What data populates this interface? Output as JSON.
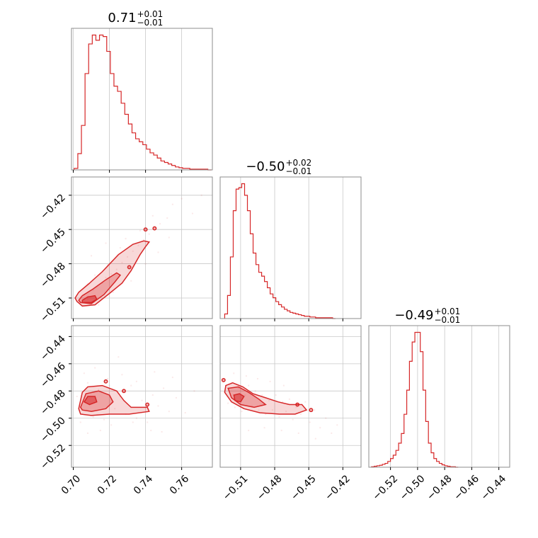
{
  "chart_data": {
    "type": "corner",
    "color": "#d62728",
    "parameters": [
      {
        "range": [
          0.699,
          0.777
        ],
        "ticks": [
          0.7,
          0.72,
          0.74,
          0.76
        ],
        "tick_labels": [
          "0.70",
          "0.72",
          "0.74",
          "0.76"
        ],
        "title": {
          "median": "0.71",
          "plus": "+0.01",
          "minus": "−0.01"
        },
        "histogram": {
          "start": 0.7005,
          "step": 0.002,
          "counts": [
            2,
            22,
            60,
            130,
            170,
            182,
            175,
            182,
            180,
            160,
            130,
            113,
            106,
            90,
            75,
            62,
            50,
            42,
            38,
            34,
            28,
            23,
            20,
            16,
            12,
            10,
            8,
            6,
            4,
            3,
            2,
            2,
            1,
            1,
            1,
            1,
            1,
            0
          ]
        }
      },
      {
        "range": [
          -0.528,
          -0.404
        ],
        "ticks": [
          -0.51,
          -0.48,
          -0.45,
          -0.42
        ],
        "tick_labels": [
          "−0.51",
          "−0.48",
          "−0.45",
          "−0.42"
        ],
        "title": {
          "median": "−0.50",
          "plus": "+0.02",
          "minus": "−0.01"
        },
        "histogram": {
          "start": -0.524,
          "step": 0.0025,
          "counts": [
            6,
            30,
            80,
            140,
            168,
            170,
            175,
            160,
            140,
            110,
            85,
            70,
            60,
            55,
            48,
            40,
            32,
            27,
            22,
            18,
            15,
            12,
            10,
            8,
            7,
            6,
            5,
            4,
            3,
            3,
            2,
            2,
            1,
            1,
            1,
            1,
            1,
            1,
            0
          ]
        }
      },
      {
        "range": [
          -0.536,
          -0.432
        ],
        "ticks": [
          -0.52,
          -0.5,
          -0.48,
          -0.46,
          -0.44
        ],
        "tick_labels": [
          "−0.52",
          "−0.50",
          "−0.48",
          "−0.46",
          "−0.44"
        ],
        "title": {
          "median": "−0.49",
          "plus": "+0.01",
          "minus": "−0.01"
        },
        "histogram": {
          "start": -0.534,
          "step": 0.002,
          "counts": [
            1,
            2,
            3,
            4,
            6,
            8,
            12,
            18,
            25,
            35,
            50,
            70,
            110,
            160,
            220,
            260,
            280,
            280,
            240,
            160,
            95,
            50,
            30,
            18,
            12,
            8,
            5,
            3,
            2,
            1,
            1,
            0
          ]
        }
      }
    ],
    "contours": [
      {
        "x_param": 0,
        "y_param": 1,
        "levels": [
          [
            [
              0.702,
              -0.513
            ],
            [
              0.705,
              -0.517
            ],
            [
              0.712,
              -0.516
            ],
            [
              0.72,
              -0.506
            ],
            [
              0.727,
              -0.497
            ],
            [
              0.732,
              -0.486
            ],
            [
              0.737,
              -0.472
            ],
            [
              0.74,
              -0.465
            ],
            [
              0.742,
              -0.461
            ],
            [
              0.739,
              -0.46
            ],
            [
              0.733,
              -0.463
            ],
            [
              0.725,
              -0.472
            ],
            [
              0.716,
              -0.487
            ],
            [
              0.709,
              -0.497
            ],
            [
              0.703,
              -0.505
            ],
            [
              0.701,
              -0.51
            ]
          ],
          [
            [
              0.704,
              -0.514
            ],
            [
              0.71,
              -0.515
            ],
            [
              0.717,
              -0.507
            ],
            [
              0.723,
              -0.496
            ],
            [
              0.726,
              -0.49
            ],
            [
              0.724,
              -0.488
            ],
            [
              0.718,
              -0.494
            ],
            [
              0.711,
              -0.502
            ],
            [
              0.705,
              -0.508
            ],
            [
              0.703,
              -0.512
            ]
          ],
          [
            [
              0.705,
              -0.514
            ],
            [
              0.71,
              -0.514
            ],
            [
              0.713,
              -0.511
            ],
            [
              0.712,
              -0.508
            ],
            [
              0.708,
              -0.509
            ],
            [
              0.705,
              -0.512
            ]
          ]
        ],
        "islands": [
          [
            0.74,
            -0.45
          ],
          [
            0.745,
            -0.449
          ],
          [
            0.731,
            -0.483
          ]
        ],
        "points": [
          [
            0.702,
            -0.513
          ],
          [
            0.704,
            -0.509
          ],
          [
            0.706,
            -0.507
          ],
          [
            0.708,
            -0.511
          ],
          [
            0.711,
            -0.503
          ],
          [
            0.713,
            -0.5
          ],
          [
            0.716,
            -0.497
          ],
          [
            0.718,
            -0.492
          ],
          [
            0.721,
            -0.489
          ],
          [
            0.724,
            -0.485
          ],
          [
            0.727,
            -0.479
          ],
          [
            0.73,
            -0.474
          ],
          [
            0.733,
            -0.469
          ],
          [
            0.736,
            -0.464
          ],
          [
            0.739,
            -0.459
          ],
          [
            0.742,
            -0.454
          ],
          [
            0.745,
            -0.448
          ],
          [
            0.748,
            -0.445
          ],
          [
            0.752,
            -0.44
          ],
          [
            0.708,
            -0.498
          ],
          [
            0.712,
            -0.49
          ],
          [
            0.719,
            -0.481
          ],
          [
            0.726,
            -0.466
          ],
          [
            0.737,
            -0.451
          ],
          [
            0.744,
            -0.438
          ],
          [
            0.755,
            -0.428
          ],
          [
            0.76,
            -0.423
          ],
          [
            0.766,
            -0.436
          ],
          [
            0.771,
            -0.42
          ],
          [
            0.714,
            -0.516
          ],
          [
            0.722,
            -0.505
          ],
          [
            0.732,
            -0.495
          ],
          [
            0.74,
            -0.48
          ],
          [
            0.747,
            -0.47
          ],
          [
            0.753,
            -0.457
          ],
          [
            0.71,
            -0.473
          ],
          [
            0.718,
            -0.462
          ],
          [
            0.729,
            -0.458
          ]
        ]
      },
      {
        "x_param": 0,
        "y_param": 2,
        "levels": [
          [
            [
              0.703,
              -0.493
            ],
            [
              0.705,
              -0.481
            ],
            [
              0.708,
              -0.477
            ],
            [
              0.716,
              -0.476
            ],
            [
              0.724,
              -0.48
            ],
            [
              0.728,
              -0.487
            ],
            [
              0.732,
              -0.492
            ],
            [
              0.741,
              -0.492
            ],
            [
              0.742,
              -0.495
            ],
            [
              0.731,
              -0.497
            ],
            [
              0.72,
              -0.497
            ],
            [
              0.71,
              -0.498
            ],
            [
              0.704,
              -0.497
            ]
          ],
          [
            [
              0.704,
              -0.492
            ],
            [
              0.707,
              -0.482
            ],
            [
              0.714,
              -0.48
            ],
            [
              0.72,
              -0.483
            ],
            [
              0.722,
              -0.488
            ],
            [
              0.718,
              -0.493
            ],
            [
              0.71,
              -0.495
            ],
            [
              0.705,
              -0.494
            ]
          ],
          [
            [
              0.706,
              -0.488
            ],
            [
              0.708,
              -0.484
            ],
            [
              0.712,
              -0.484
            ],
            [
              0.713,
              -0.488
            ],
            [
              0.709,
              -0.49
            ]
          ]
        ],
        "islands": [
          [
            0.718,
            -0.473
          ],
          [
            0.728,
            -0.48
          ],
          [
            0.741,
            -0.49
          ]
        ],
        "points": [
          [
            0.702,
            -0.484
          ],
          [
            0.705,
            -0.497
          ],
          [
            0.708,
            -0.474
          ],
          [
            0.711,
            -0.499
          ],
          [
            0.714,
            -0.479
          ],
          [
            0.717,
            -0.501
          ],
          [
            0.72,
            -0.476
          ],
          [
            0.723,
            -0.493
          ],
          [
            0.726,
            -0.484
          ],
          [
            0.729,
            -0.497
          ],
          [
            0.732,
            -0.476
          ],
          [
            0.735,
            -0.5
          ],
          [
            0.738,
            -0.487
          ],
          [
            0.741,
            -0.503
          ],
          [
            0.744,
            -0.483
          ],
          [
            0.747,
            -0.491
          ],
          [
            0.75,
            -0.478
          ],
          [
            0.753,
            -0.495
          ],
          [
            0.757,
            -0.485
          ],
          [
            0.762,
            -0.496
          ],
          [
            0.767,
            -0.48
          ],
          [
            0.706,
            -0.467
          ],
          [
            0.712,
            -0.463
          ],
          [
            0.719,
            -0.471
          ],
          [
            0.727,
            -0.468
          ],
          [
            0.735,
            -0.473
          ],
          [
            0.743,
            -0.509
          ],
          [
            0.715,
            -0.509
          ],
          [
            0.708,
            -0.511
          ],
          [
            0.733,
            -0.503
          ],
          [
            0.749,
            -0.51
          ],
          [
            0.725,
            -0.455
          ],
          [
            0.745,
            -0.466
          ],
          [
            0.755,
            -0.47
          ],
          [
            0.704,
            -0.503
          ],
          [
            0.721,
            -0.505
          ]
        ]
      },
      {
        "x_param": 1,
        "y_param": 2,
        "levels": [
          [
            [
              -0.523,
              -0.476
            ],
            [
              -0.517,
              -0.474
            ],
            [
              -0.508,
              -0.477
            ],
            [
              -0.499,
              -0.482
            ],
            [
              -0.488,
              -0.485
            ],
            [
              -0.477,
              -0.488
            ],
            [
              -0.467,
              -0.49
            ],
            [
              -0.456,
              -0.49
            ],
            [
              -0.452,
              -0.494
            ],
            [
              -0.462,
              -0.497
            ],
            [
              -0.476,
              -0.497
            ],
            [
              -0.493,
              -0.496
            ],
            [
              -0.507,
              -0.493
            ],
            [
              -0.518,
              -0.488
            ],
            [
              -0.524,
              -0.481
            ]
          ],
          [
            [
              -0.521,
              -0.478
            ],
            [
              -0.512,
              -0.477
            ],
            [
              -0.503,
              -0.481
            ],
            [
              -0.494,
              -0.486
            ],
            [
              -0.488,
              -0.49
            ],
            [
              -0.498,
              -0.492
            ],
            [
              -0.51,
              -0.49
            ],
            [
              -0.518,
              -0.485
            ]
          ],
          [
            [
              -0.516,
              -0.483
            ],
            [
              -0.511,
              -0.482
            ],
            [
              -0.507,
              -0.484
            ],
            [
              -0.51,
              -0.488
            ],
            [
              -0.515,
              -0.487
            ]
          ]
        ],
        "islands": [
          [
            -0.525,
            -0.472
          ],
          [
            -0.448,
            -0.494
          ],
          [
            -0.46,
            -0.49
          ]
        ],
        "points": [
          [
            -0.524,
            -0.48
          ],
          [
            -0.521,
            -0.489
          ],
          [
            -0.518,
            -0.474
          ],
          [
            -0.515,
            -0.492
          ],
          [
            -0.512,
            -0.478
          ],
          [
            -0.509,
            -0.495
          ],
          [
            -0.506,
            -0.483
          ],
          [
            -0.503,
            -0.476
          ],
          [
            -0.5,
            -0.491
          ],
          [
            -0.497,
            -0.48
          ],
          [
            -0.494,
            -0.494
          ],
          [
            -0.491,
            -0.483
          ],
          [
            -0.488,
            -0.497
          ],
          [
            -0.485,
            -0.487
          ],
          [
            -0.482,
            -0.494
          ],
          [
            -0.479,
            -0.483
          ],
          [
            -0.476,
            -0.499
          ],
          [
            -0.473,
            -0.488
          ],
          [
            -0.47,
            -0.495
          ],
          [
            -0.467,
            -0.486
          ],
          [
            -0.464,
            -0.501
          ],
          [
            -0.461,
            -0.492
          ],
          [
            -0.457,
            -0.497
          ],
          [
            -0.453,
            -0.488
          ],
          [
            -0.449,
            -0.503
          ],
          [
            -0.445,
            -0.494
          ],
          [
            -0.44,
            -0.507
          ],
          [
            -0.435,
            -0.5
          ],
          [
            -0.43,
            -0.511
          ],
          [
            -0.425,
            -0.505
          ],
          [
            -0.516,
            -0.467
          ],
          [
            -0.505,
            -0.469
          ],
          [
            -0.495,
            -0.471
          ],
          [
            -0.484,
            -0.473
          ],
          [
            -0.472,
            -0.476
          ],
          [
            -0.503,
            -0.509
          ],
          [
            -0.489,
            -0.507
          ],
          [
            -0.474,
            -0.509
          ],
          [
            -0.459,
            -0.511
          ],
          [
            -0.444,
            -0.515
          ]
        ]
      }
    ]
  }
}
